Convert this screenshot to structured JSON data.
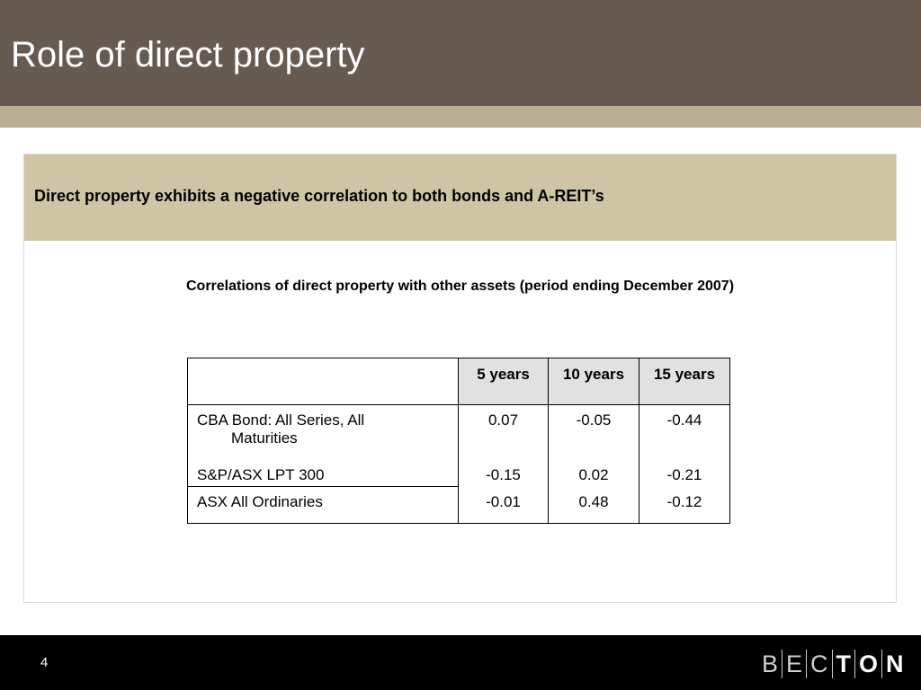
{
  "slide": {
    "title": "Role of direct property",
    "headline": "Direct property exhibits a negative correlation to both bonds and A-REIT’s",
    "table_title": "Correlations of direct property with other assets (period ending December 2007)",
    "page_number": "4"
  },
  "table": {
    "headers": [
      "",
      "5 years",
      "10 years",
      "15 years"
    ],
    "rows": [
      {
        "label_line1": "CBA Bond: All Series, All",
        "label_line2": "Maturities",
        "values": [
          "0.07",
          "-0.05",
          "-0.44"
        ]
      },
      {
        "label": "S&P/ASX LPT 300",
        "values": [
          "-0.15",
          "0.02",
          "-0.21"
        ]
      },
      {
        "label": "ASX All Ordinaries",
        "values": [
          "-0.01",
          "0.48",
          "-0.12"
        ]
      }
    ]
  },
  "logo": {
    "letters": [
      "B",
      "E",
      "C",
      "T",
      "O",
      "N"
    ]
  },
  "colors": {
    "title_bar": "#675a51",
    "accent_band": "#b8ae92",
    "headline_band": "#cfc4a5",
    "header_cell": "#e1e1e1",
    "footer": "#000000"
  }
}
